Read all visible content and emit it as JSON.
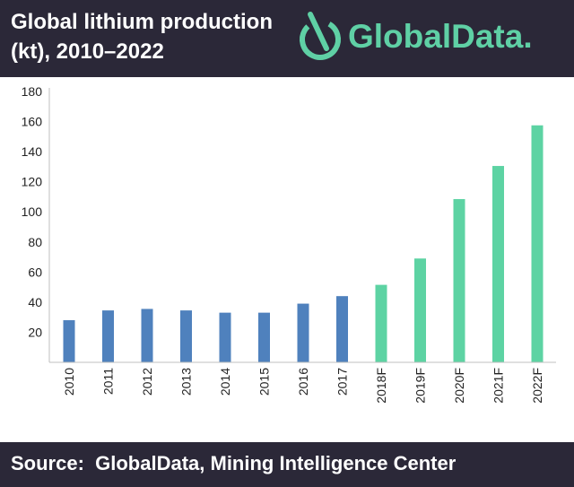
{
  "header": {
    "title": "Global lithium production\n(kt), 2010–2022",
    "logo_text": "GlobalData.",
    "logo_icon": "globaldata-logo-icon"
  },
  "footer": {
    "source": "Source:  GlobalData, Mining Intelligence Center"
  },
  "colors": {
    "header_bg": "#2b2838",
    "actual": "#4f81bd",
    "forecast": "#5dd3a3",
    "brand": "#5fd0a5"
  },
  "chart_data": {
    "type": "bar",
    "title": "Global lithium production (kt), 2010–2022",
    "xlabel": "",
    "ylabel": "",
    "ylim": [
      0,
      180
    ],
    "yticks": [
      20,
      40,
      60,
      80,
      100,
      120,
      140,
      160,
      180
    ],
    "grid": false,
    "legend": "none",
    "categories": [
      "2010",
      "2011",
      "2012",
      "2013",
      "2014",
      "2015",
      "2016",
      "2017",
      "2018F",
      "2019F",
      "2020F",
      "2021F",
      "2022F"
    ],
    "values": [
      28,
      34.5,
      35.5,
      34.5,
      33,
      33,
      39,
      44,
      51.5,
      69,
      108.5,
      130.5,
      157.5
    ],
    "kind": [
      "actual",
      "actual",
      "actual",
      "actual",
      "actual",
      "actual",
      "actual",
      "actual",
      "forecast",
      "forecast",
      "forecast",
      "forecast",
      "forecast"
    ]
  }
}
